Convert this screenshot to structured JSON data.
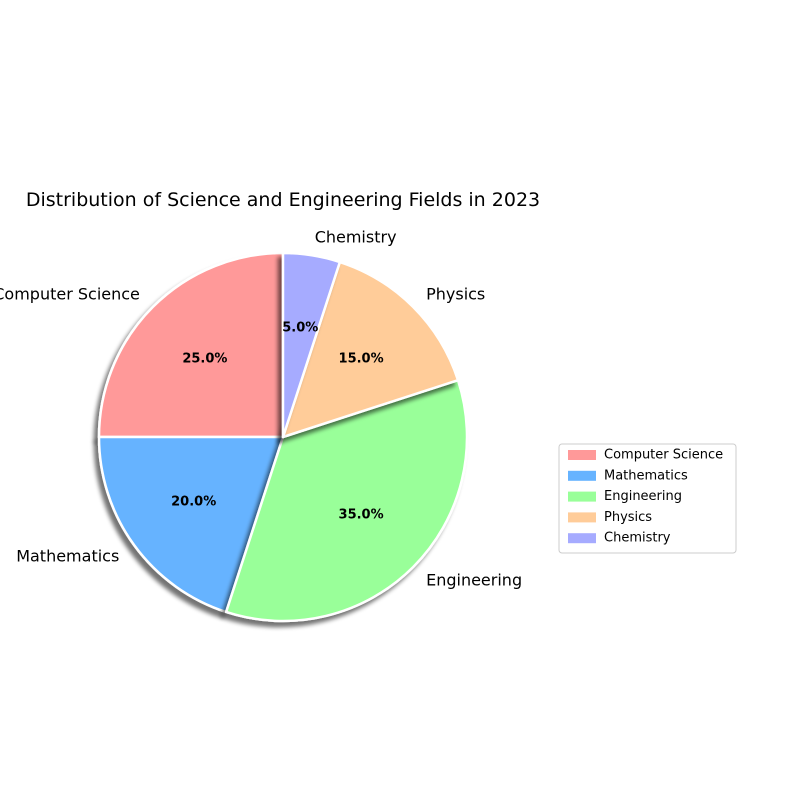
{
  "chart_data": {
    "type": "pie",
    "title": "Distribution of Science and Engineering Fields in 2023",
    "categories": [
      "Computer Science",
      "Mathematics",
      "Engineering",
      "Physics",
      "Chemistry"
    ],
    "values": [
      25.0,
      20.0,
      35.0,
      15.0,
      5.0
    ],
    "percent_labels": [
      "25.0%",
      "20.0%",
      "35.0%",
      "15.0%",
      "5.0%"
    ],
    "colors": [
      "#ff9999",
      "#66b3ff",
      "#99ff99",
      "#ffcc99",
      "#a6abff"
    ],
    "start_angle_deg": 90,
    "direction": "counterclockwise",
    "shadow": true,
    "legend": {
      "placement": "center-right",
      "entries": [
        "Computer Science",
        "Mathematics",
        "Engineering",
        "Physics",
        "Chemistry"
      ]
    }
  }
}
